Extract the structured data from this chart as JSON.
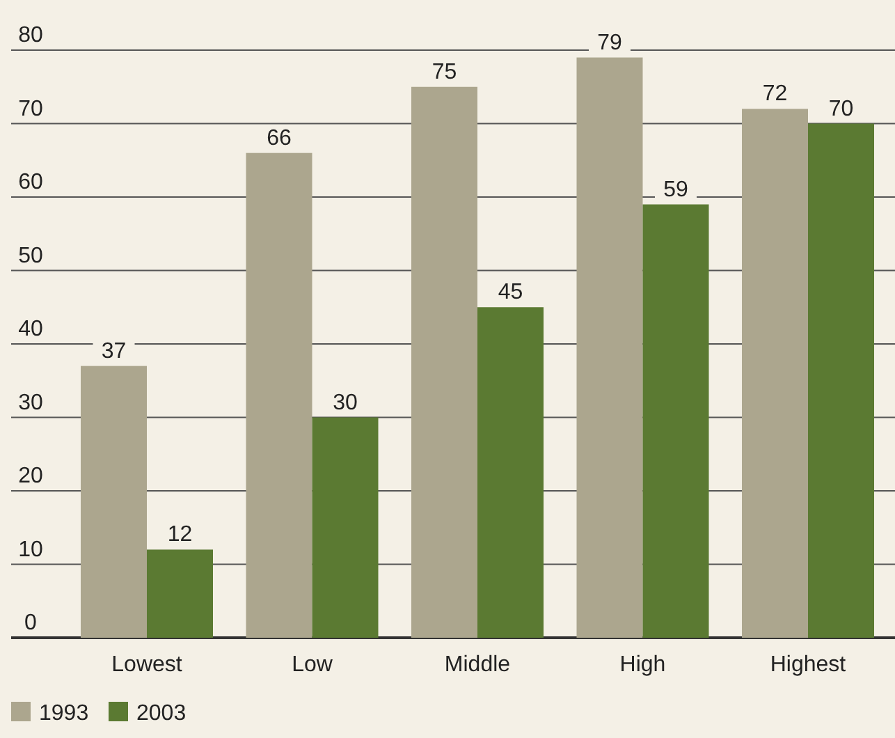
{
  "chart_data": {
    "type": "bar",
    "categories": [
      "Lowest",
      "Low",
      "Middle",
      "High",
      "Highest"
    ],
    "series": [
      {
        "name": "1993",
        "color": "#aca68e",
        "values": [
          37,
          66,
          75,
          79,
          72
        ]
      },
      {
        "name": "2003",
        "color": "#5b7a32",
        "values": [
          12,
          30,
          45,
          59,
          70
        ]
      }
    ],
    "ylim": [
      0,
      80
    ],
    "yticks": [
      0,
      10,
      20,
      30,
      40,
      50,
      60,
      70,
      80
    ],
    "grid": "y",
    "legend": "bottom left",
    "data_labels": true
  }
}
